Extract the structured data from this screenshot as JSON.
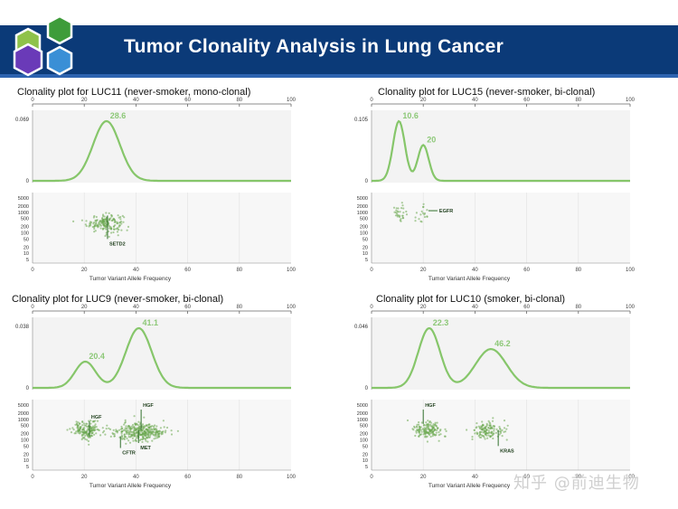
{
  "slide_title": "Tumor Clonality Analysis in Lung Cancer",
  "watermark": "知乎 @前迪生物",
  "colors": {
    "curve": "#86c66a",
    "points": "#6aa84f",
    "banner": "#0b3a78",
    "label": "#8dc878"
  },
  "chart_data": [
    {
      "type": "line",
      "title": "Clonality plot for LUC11 (never-smoker, mono-clonal)",
      "xlabel": "Tumor Variant Allele Frequency",
      "x_ticks": [
        0,
        20,
        40,
        60,
        80,
        100
      ],
      "density_ymax_label": "0.069",
      "density_ymin_label": "0",
      "peaks": [
        {
          "x": 28.6,
          "label": "28.6",
          "height": 1.0,
          "width": 5.2
        }
      ],
      "scatter_y_ticks": [
        "5000",
        "2000",
        "1000",
        "500",
        "200",
        "100",
        "50",
        "20",
        "10",
        "5"
      ],
      "scatter_clusters": [
        {
          "center_x": 28,
          "spread_x": 5,
          "center_y": 300,
          "n": 170
        }
      ],
      "gene_labels": [
        {
          "gene": "SETD2",
          "x": 29,
          "y_top": 700,
          "y_bottom": 50,
          "text_pos": "bottom"
        }
      ]
    },
    {
      "type": "line",
      "title": "Clonality plot for LUC15 (never-smoker, bi-clonal)",
      "xlabel": "Tumor Variant Allele Frequency",
      "x_ticks": [
        0,
        20,
        40,
        60,
        80,
        100
      ],
      "density_ymax_label": "0.105",
      "density_ymin_label": "0",
      "peaks": [
        {
          "x": 10.6,
          "label": "10.6",
          "height": 1.0,
          "width": 2.3
        },
        {
          "x": 20,
          "label": "20",
          "height": 0.6,
          "width": 2.1
        }
      ],
      "scatter_y_ticks": [
        "5000",
        "2000",
        "1000",
        "500",
        "200",
        "100",
        "50",
        "20",
        "10",
        "5"
      ],
      "scatter_clusters": [
        {
          "center_x": 11,
          "spread_x": 2,
          "center_y": 900,
          "n": 30
        },
        {
          "center_x": 20,
          "spread_x": 2,
          "center_y": 1000,
          "n": 18
        }
      ],
      "gene_labels": [
        {
          "gene": "EGFR",
          "x": 22,
          "y_top": 1200,
          "y_bottom": 1200,
          "text_pos": "right"
        }
      ]
    },
    {
      "type": "line",
      "title": "Clonality plot for LUC9 (never-smoker, bi-clonal)",
      "xlabel": "Tumor Variant Allele Frequency",
      "x_ticks": [
        0,
        20,
        40,
        60,
        80,
        100
      ],
      "density_ymax_label": "0.038",
      "density_ymin_label": "0",
      "peaks": [
        {
          "x": 20.4,
          "label": "20.4",
          "height": 0.44,
          "width": 4.0
        },
        {
          "x": 41.1,
          "label": "41.1",
          "height": 1.0,
          "width": 5.0
        }
      ],
      "scatter_y_ticks": [
        "5000",
        "2000",
        "1000",
        "500",
        "200",
        "100",
        "50",
        "20",
        "10",
        "5"
      ],
      "scatter_clusters": [
        {
          "center_x": 21,
          "spread_x": 4,
          "center_y": 300,
          "n": 160
        },
        {
          "center_x": 42,
          "spread_x": 7,
          "center_y": 250,
          "n": 320
        }
      ],
      "gene_labels": [
        {
          "gene": "HGF",
          "x": 22,
          "y_top": 800,
          "y_bottom": 150,
          "text_pos": "top"
        },
        {
          "gene": "HGF",
          "x": 42,
          "y_top": 3000,
          "y_bottom": 300,
          "text_pos": "top"
        },
        {
          "gene": "CFTR",
          "x": 34,
          "y_top": 150,
          "y_bottom": 40,
          "text_pos": "bottom"
        },
        {
          "gene": "MET",
          "x": 41,
          "y_top": 300,
          "y_bottom": 70,
          "text_pos": "bottom"
        }
      ]
    },
    {
      "type": "line",
      "title": "Clonality plot for LUC10 (smoker, bi-clonal)",
      "xlabel": "Tumor Variant Allele Frequency",
      "x_ticks": [
        0,
        20,
        40,
        60,
        80,
        100
      ],
      "density_ymax_label": "0.046",
      "density_ymin_label": "0",
      "peaks": [
        {
          "x": 22.3,
          "label": "22.3",
          "height": 1.0,
          "width": 4.2
        },
        {
          "x": 46.2,
          "label": "46.2",
          "height": 0.65,
          "width": 6.0
        }
      ],
      "scatter_y_ticks": [
        "5000",
        "2000",
        "1000",
        "500",
        "200",
        "100",
        "50",
        "20",
        "10",
        "5"
      ],
      "scatter_clusters": [
        {
          "center_x": 22,
          "spread_x": 4,
          "center_y": 300,
          "n": 150
        },
        {
          "center_x": 45,
          "spread_x": 5,
          "center_y": 300,
          "n": 130
        }
      ],
      "gene_labels": [
        {
          "gene": "HGF",
          "x": 20,
          "y_top": 3000,
          "y_bottom": 600,
          "text_pos": "top"
        },
        {
          "gene": "KRAS",
          "x": 49,
          "y_top": 300,
          "y_bottom": 50,
          "text_pos": "bottom"
        }
      ]
    }
  ]
}
